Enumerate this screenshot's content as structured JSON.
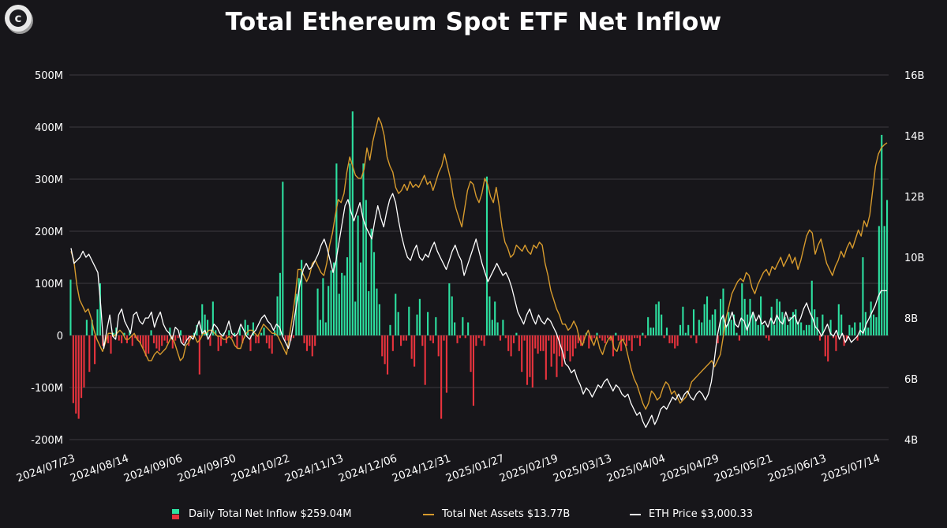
{
  "title": "Total Ethereum Spot ETF Net Inflow",
  "colors": {
    "inflow_pos": "#2de0a0",
    "inflow_neg": "#e8333d",
    "assets_line": "#d69a2d",
    "price_line": "#ffffff",
    "grid": "#3c3b40",
    "background": "#17161a"
  },
  "legend": {
    "inflow": "Daily Total Net Inflow $259.04M",
    "assets": "Total Net Assets $13.77B",
    "price": "ETH Price $3,000.33"
  },
  "chart_data": {
    "type": "bar",
    "title": "Total Ethereum Spot ETF Net Inflow",
    "grid": true,
    "legend_position": "bottom",
    "y_left": {
      "ticks": [
        "500M",
        "400M",
        "300M",
        "200M",
        "100M",
        "0",
        "-100M",
        "-200M"
      ],
      "range": [
        -200,
        500
      ],
      "unit": "M"
    },
    "y_right": {
      "ticks": [
        "16B",
        "14B",
        "12B",
        "10B",
        "8B",
        "6B",
        "4B"
      ],
      "range": [
        4,
        16
      ],
      "unit": "B"
    },
    "x_ticks": [
      "2024/07/23",
      "2024/08/14",
      "2024/09/06",
      "2024/09/30",
      "2024/10/22",
      "2024/11/13",
      "2024/12/06",
      "2024/12/31",
      "2025/01/27",
      "2025/02/19",
      "2025/03/13",
      "2025/04/04",
      "2025/04/29",
      "2025/05/21",
      "2025/06/13",
      "2025/07/14"
    ],
    "series": [
      {
        "name": "Daily Total Net Inflow $259.04M",
        "type": "bar",
        "axis": "left",
        "values": [
          107,
          -130,
          -150,
          -160,
          -120,
          -100,
          30,
          -70,
          30,
          -55,
          50,
          100,
          -20,
          -10,
          -15,
          -35,
          5,
          15,
          -10,
          -15,
          5,
          -15,
          10,
          -20,
          -5,
          -10,
          -15,
          -25,
          -40,
          -35,
          10,
          -15,
          -25,
          -30,
          -20,
          -10,
          -15,
          15,
          -25,
          -10,
          -5,
          10,
          -15,
          -10,
          -20,
          -5,
          5,
          20,
          -75,
          60,
          40,
          30,
          -20,
          65,
          10,
          -30,
          -20,
          5,
          -15,
          10,
          -5,
          5,
          -25,
          15,
          -15,
          30,
          20,
          -30,
          25,
          -15,
          -15,
          5,
          15,
          -15,
          -25,
          -35,
          10,
          75,
          120,
          295,
          -10,
          -10,
          -10,
          -5,
          80,
          110,
          145,
          -15,
          -30,
          -20,
          -40,
          -20,
          90,
          30,
          110,
          25,
          95,
          125,
          140,
          330,
          80,
          120,
          115,
          150,
          330,
          430,
          65,
          230,
          140,
          330,
          260,
          85,
          205,
          160,
          90,
          60,
          -40,
          -55,
          -75,
          20,
          -30,
          80,
          45,
          -20,
          -10,
          -10,
          55,
          -45,
          -60,
          40,
          70,
          -20,
          -95,
          45,
          -10,
          -15,
          35,
          -40,
          -160,
          -10,
          -110,
          100,
          75,
          25,
          -15,
          -5,
          35,
          -5,
          25,
          -70,
          -135,
          -20,
          -5,
          -10,
          -20,
          305,
          75,
          30,
          65,
          25,
          -10,
          30,
          -5,
          -30,
          -40,
          -15,
          5,
          -30,
          -70,
          -10,
          -95,
          -80,
          -100,
          -25,
          -35,
          -30,
          -30,
          -85,
          -10,
          -60,
          -35,
          -80,
          -40,
          -60,
          -45,
          -30,
          -50,
          -40,
          -25,
          -15,
          -20,
          -15,
          5,
          -25,
          -10,
          -5,
          5,
          -5,
          -10,
          -15,
          -5,
          -10,
          -40,
          5,
          -10,
          -30,
          -10,
          -20,
          -10,
          -30,
          -5,
          -5,
          -20,
          5,
          -5,
          35,
          15,
          15,
          60,
          65,
          40,
          -5,
          15,
          -15,
          -15,
          -25,
          -20,
          20,
          55,
          5,
          20,
          -5,
          50,
          -15,
          30,
          25,
          60,
          75,
          30,
          40,
          50,
          -15,
          70,
          90,
          20,
          45,
          30,
          40,
          5,
          -10,
          100,
          70,
          40,
          70,
          45,
          30,
          20,
          75,
          20,
          -5,
          -10,
          55,
          20,
          70,
          65,
          45,
          35,
          20,
          35,
          45,
          50,
          25,
          25,
          10,
          20,
          20,
          105,
          50,
          35,
          -10,
          40,
          -40,
          -50,
          30,
          -5,
          -30,
          60,
          40,
          -20,
          -10,
          20,
          15,
          25,
          -10,
          25,
          150,
          45,
          15,
          65,
          40,
          35,
          210,
          385,
          210,
          260
        ]
      },
      {
        "name": "Total Net Assets $13.77B",
        "type": "line",
        "axis": "right",
        "values": [
          10.2,
          9.9,
          9.1,
          8.6,
          8.4,
          8.2,
          8.3,
          8.0,
          7.6,
          7.3,
          7.1,
          6.9,
          7.2,
          7.5,
          7.5,
          7.4,
          7.5,
          7.6,
          7.5,
          7.3,
          7.3,
          7.4,
          7.5,
          7.3,
          7.2,
          7.0,
          6.8,
          6.6,
          6.6,
          6.8,
          6.9,
          6.8,
          6.9,
          7.0,
          7.2,
          7.4,
          7.2,
          6.9,
          6.6,
          6.7,
          7.1,
          7.2,
          7.4,
          7.4,
          7.2,
          7.3,
          7.5,
          7.5,
          7.6,
          7.6,
          7.5,
          7.4,
          7.4,
          7.3,
          7.3,
          7.4,
          7.3,
          7.1,
          7.0,
          7.0,
          7.3,
          7.5,
          7.6,
          7.6,
          7.5,
          7.4,
          7.6,
          7.8,
          7.7,
          7.6,
          7.5,
          7.5,
          7.4,
          7.2,
          7.0,
          6.8,
          7.4,
          8.0,
          8.7,
          9.6,
          9.6,
          9.4,
          9.2,
          9.4,
          9.8,
          9.9,
          9.7,
          9.5,
          9.4,
          9.8,
          10.4,
          10.8,
          11.4,
          11.9,
          11.8,
          12.1,
          12.8,
          13.3,
          13.0,
          12.7,
          12.6,
          12.6,
          12.9,
          13.6,
          13.2,
          13.8,
          14.2,
          14.6,
          14.4,
          14.0,
          13.3,
          13.0,
          12.8,
          12.3,
          12.1,
          12.2,
          12.4,
          12.2,
          12.5,
          12.3,
          12.4,
          12.3,
          12.5,
          12.7,
          12.4,
          12.5,
          12.2,
          12.5,
          12.8,
          13.0,
          13.4,
          13.0,
          12.6,
          12.0,
          11.6,
          11.3,
          11.0,
          11.6,
          12.2,
          12.5,
          12.4,
          12.0,
          11.8,
          12.1,
          12.6,
          12.4,
          12.0,
          11.8,
          12.3,
          11.7,
          11.0,
          10.5,
          10.3,
          10.0,
          10.1,
          10.4,
          10.3,
          10.2,
          10.4,
          10.2,
          10.1,
          10.4,
          10.3,
          10.5,
          10.4,
          9.8,
          9.4,
          8.9,
          8.6,
          8.3,
          8.1,
          7.8,
          7.8,
          7.6,
          7.7,
          7.9,
          7.7,
          7.3,
          7.1,
          7.4,
          7.6,
          7.3,
          7.1,
          7.4,
          7.0,
          6.8,
          7.1,
          7.3,
          7.4,
          7.0,
          6.9,
          7.2,
          7.3,
          7.1,
          6.7,
          6.3,
          6.0,
          5.8,
          5.5,
          5.2,
          5.0,
          5.2,
          5.6,
          5.5,
          5.3,
          5.4,
          5.7,
          5.9,
          5.8,
          5.5,
          5.6,
          5.4,
          5.2,
          5.3,
          5.4,
          5.6,
          5.9,
          6.0,
          6.1,
          6.2,
          6.3,
          6.4,
          6.5,
          6.6,
          6.4,
          6.6,
          6.8,
          7.4,
          8.0,
          8.4,
          8.8,
          9.0,
          9.2,
          9.3,
          9.2,
          9.5,
          9.4,
          9.0,
          8.8,
          9.1,
          9.3,
          9.5,
          9.6,
          9.4,
          9.7,
          9.6,
          9.8,
          10.0,
          9.7,
          9.9,
          10.1,
          9.8,
          10.0,
          9.6,
          9.9,
          10.3,
          10.7,
          10.9,
          10.8,
          10.1,
          10.4,
          10.6,
          10.2,
          9.8,
          9.6,
          9.4,
          9.7,
          9.9,
          10.2,
          10.0,
          10.3,
          10.5,
          10.3,
          10.6,
          10.9,
          10.7,
          11.2,
          11.0,
          11.4,
          12.2,
          13.0,
          13.4,
          13.6,
          13.7,
          13.77
        ]
      },
      {
        "name": "ETH Price $3,000.33",
        "type": "line",
        "axis": "right",
        "values": [
          10.3,
          9.8,
          9.9,
          10.0,
          10.2,
          10.0,
          10.1,
          9.9,
          9.7,
          9.5,
          8.4,
          7.0,
          7.6,
          8.1,
          7.4,
          7.3,
          8.1,
          8.3,
          7.9,
          7.7,
          7.5,
          8.1,
          8.2,
          7.9,
          7.8,
          8.0,
          8.0,
          8.2,
          7.7,
          8.0,
          8.2,
          7.8,
          7.6,
          7.5,
          7.3,
          7.7,
          7.6,
          7.2,
          7.1,
          7.3,
          7.4,
          7.3,
          7.6,
          7.9,
          7.5,
          7.6,
          7.3,
          7.5,
          7.8,
          7.7,
          7.5,
          7.4,
          7.6,
          7.9,
          7.5,
          7.4,
          7.5,
          7.8,
          7.6,
          7.4,
          7.3,
          7.5,
          7.6,
          7.8,
          8.0,
          8.1,
          7.9,
          7.8,
          7.6,
          7.8,
          7.7,
          7.4,
          7.2,
          7.0,
          7.4,
          8.0,
          8.6,
          9.2,
          9.6,
          9.8,
          9.6,
          9.7,
          9.9,
          10.1,
          10.4,
          10.6,
          10.3,
          9.9,
          9.5,
          9.9,
          10.5,
          11.1,
          11.7,
          11.9,
          11.5,
          11.2,
          11.5,
          11.8,
          11.3,
          11.0,
          10.8,
          10.6,
          11.2,
          11.7,
          11.3,
          11.0,
          11.5,
          11.9,
          12.1,
          11.8,
          11.2,
          10.7,
          10.3,
          10.0,
          9.9,
          10.2,
          10.4,
          10.0,
          9.9,
          10.1,
          10.0,
          10.3,
          10.5,
          10.2,
          10.0,
          9.8,
          9.6,
          9.9,
          10.2,
          10.4,
          10.1,
          9.9,
          9.4,
          9.7,
          10.0,
          10.3,
          10.6,
          10.2,
          9.8,
          9.5,
          9.2,
          9.4,
          9.6,
          9.8,
          9.6,
          9.4,
          9.5,
          9.3,
          9.0,
          8.6,
          8.2,
          8.0,
          7.8,
          8.1,
          8.3,
          8.0,
          7.8,
          8.1,
          7.9,
          7.8,
          8.0,
          7.9,
          7.7,
          7.5,
          7.2,
          6.9,
          6.5,
          6.4,
          6.2,
          6.3,
          6.0,
          5.8,
          5.5,
          5.7,
          5.6,
          5.4,
          5.6,
          5.8,
          5.7,
          5.9,
          6.0,
          5.8,
          5.6,
          5.8,
          5.7,
          5.5,
          5.4,
          5.5,
          5.2,
          5.0,
          4.8,
          4.9,
          4.6,
          4.4,
          4.6,
          4.8,
          4.5,
          4.7,
          5.0,
          5.1,
          5.0,
          5.2,
          5.4,
          5.3,
          5.5,
          5.3,
          5.5,
          5.6,
          5.4,
          5.3,
          5.5,
          5.6,
          5.5,
          5.3,
          5.5,
          5.9,
          6.6,
          7.4,
          7.9,
          8.1,
          7.7,
          7.9,
          8.2,
          7.8,
          7.7,
          8.0,
          7.9,
          7.6,
          7.9,
          8.2,
          7.9,
          8.1,
          7.8,
          7.9,
          7.7,
          8.0,
          7.8,
          8.1,
          7.9,
          7.8,
          8.2,
          7.9,
          8.0,
          8.1,
          7.8,
          8.0,
          8.3,
          8.5,
          8.2,
          8.0,
          7.7,
          7.6,
          7.4,
          7.6,
          7.8,
          7.5,
          7.4,
          7.6,
          7.3,
          7.5,
          7.2,
          7.4,
          7.2,
          7.3,
          7.4,
          7.6,
          7.5,
          7.8,
          8.0,
          8.2,
          8.4,
          8.7,
          8.9,
          8.9,
          8.9
        ]
      }
    ]
  }
}
